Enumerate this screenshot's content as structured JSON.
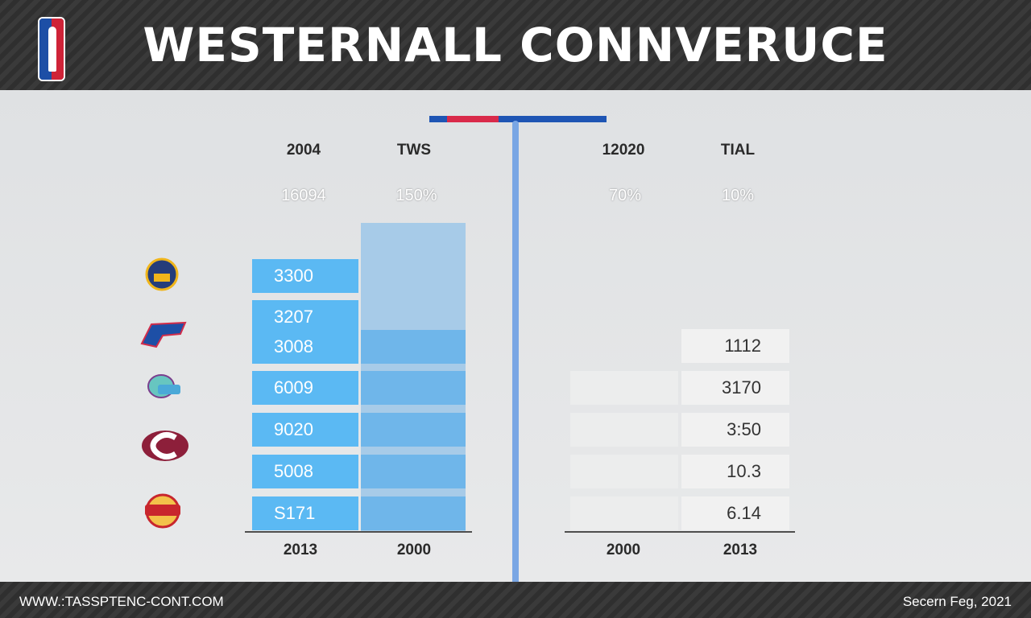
{
  "header": {
    "title": "WESTERNALL CONNVERUCE"
  },
  "colors": {
    "bar_blue": "#5bb9f3",
    "accent_blue": "#1e55b4",
    "accent_red": "#d92a4a"
  },
  "columns": {
    "headers": [
      "2004",
      "TWS",
      "12020",
      "TIAL"
    ],
    "percents": [
      "16094",
      "150%",
      "70%",
      "10%"
    ],
    "footers": [
      "2013",
      "2000",
      "2000",
      "2013"
    ]
  },
  "left_bars": [
    "3300",
    "3207",
    "3008",
    "6009",
    "9020",
    "5008",
    "S171"
  ],
  "right_values": [
    "1112",
    "3170",
    "3:50",
    "10.3",
    "6.14"
  ],
  "teams": [
    "warriors-logo",
    "pistons-logo",
    "hornets-logo",
    "cavaliers-logo",
    "lakers-logo"
  ],
  "footer": {
    "url": "WWW.:TASSPTENC-CONT.COM",
    "date": "Secern Feg, 2021"
  }
}
